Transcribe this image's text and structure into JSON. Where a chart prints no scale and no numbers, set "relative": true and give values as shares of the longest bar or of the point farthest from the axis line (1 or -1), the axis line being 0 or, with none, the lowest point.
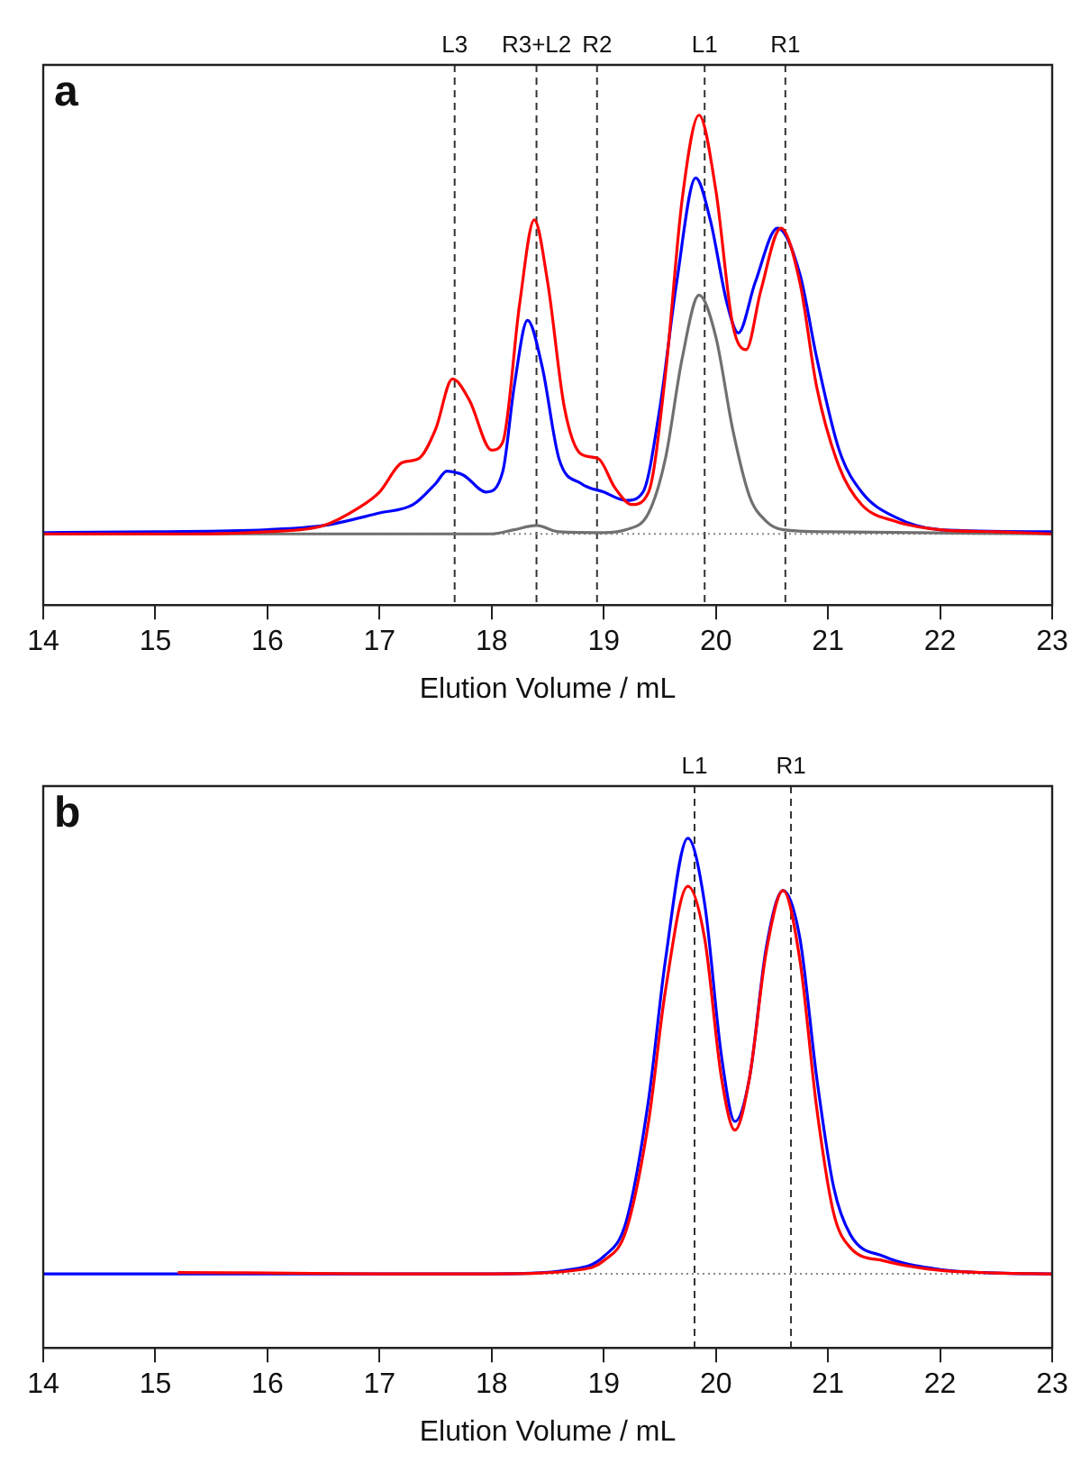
{
  "chart_data": [
    {
      "type": "line",
      "title": "a",
      "xlabel": "Elution Volume / mL",
      "relative": true,
      "xlim": [
        14,
        23
      ],
      "xticks": [
        14,
        15,
        16,
        17,
        18,
        19,
        20,
        21,
        22,
        23
      ],
      "grid": false,
      "legend": false,
      "marker": "none",
      "line_style": "solid",
      "ref_lines": [
        {
          "axis": "x",
          "value": 17.67,
          "label": "L3",
          "line_style": "dashed",
          "color": "#333333"
        },
        {
          "axis": "x",
          "value": 18.4,
          "label": "R3+L2",
          "line_style": "dashed",
          "color": "#333333"
        },
        {
          "axis": "x",
          "value": 18.94,
          "label": "R2",
          "line_style": "dashed",
          "color": "#333333"
        },
        {
          "axis": "x",
          "value": 19.9,
          "label": "L1",
          "line_style": "dashed",
          "color": "#333333"
        },
        {
          "axis": "x",
          "value": 20.62,
          "label": "R1",
          "line_style": "dashed",
          "color": "#333333"
        },
        {
          "axis": "y",
          "value": 0,
          "line_style": "dotted",
          "color": "#888888"
        }
      ],
      "series": [
        {
          "color": "#ff0000",
          "x": [
            14,
            15.3,
            16,
            16.5,
            16.8,
            17,
            17.2,
            17.35,
            17.5,
            17.65,
            17.8,
            18,
            18.1,
            18.25,
            18.38,
            18.5,
            18.65,
            18.8,
            18.95,
            19.1,
            19.25,
            19.4,
            19.55,
            19.7,
            19.85,
            20,
            20.15,
            20.27,
            20.4,
            20.58,
            20.75,
            20.9,
            21.1,
            21.3,
            21.6,
            22,
            22.5,
            23
          ],
          "values": [
            0,
            0,
            0.005,
            0.02,
            0.06,
            0.1,
            0.17,
            0.18,
            0.25,
            0.37,
            0.32,
            0.2,
            0.22,
            0.55,
            0.75,
            0.6,
            0.3,
            0.19,
            0.18,
            0.11,
            0.07,
            0.1,
            0.38,
            0.8,
            1,
            0.82,
            0.5,
            0.44,
            0.58,
            0.73,
            0.6,
            0.35,
            0.16,
            0.07,
            0.03,
            0.01,
            0.005,
            0
          ]
        },
        {
          "color": "#0000ff",
          "x": [
            14,
            15,
            16,
            16.5,
            17,
            17.3,
            17.5,
            17.6,
            17.75,
            17.95,
            18.1,
            18.2,
            18.32,
            18.45,
            18.6,
            18.8,
            19,
            19.2,
            19.35,
            19.5,
            19.65,
            19.82,
            19.95,
            20.1,
            20.2,
            20.35,
            20.55,
            20.75,
            20.9,
            21.1,
            21.3,
            21.6,
            22,
            23
          ],
          "values": [
            0.003,
            0.005,
            0.01,
            0.02,
            0.05,
            0.07,
            0.12,
            0.15,
            0.14,
            0.1,
            0.15,
            0.35,
            0.51,
            0.4,
            0.18,
            0.12,
            0.1,
            0.08,
            0.1,
            0.3,
            0.6,
            0.85,
            0.75,
            0.55,
            0.48,
            0.6,
            0.73,
            0.62,
            0.42,
            0.2,
            0.1,
            0.04,
            0.01,
            0.005
          ]
        },
        {
          "color": "#707070",
          "x": [
            14,
            18,
            18.2,
            18.4,
            18.6,
            19,
            19.2,
            19.4,
            19.55,
            19.7,
            19.85,
            20,
            20.15,
            20.3,
            20.45,
            20.6,
            21,
            23
          ],
          "values": [
            0,
            0,
            0.01,
            0.02,
            0.005,
            0.003,
            0.01,
            0.05,
            0.18,
            0.42,
            0.57,
            0.47,
            0.25,
            0.09,
            0.03,
            0.01,
            0.005,
            0
          ]
        }
      ]
    },
    {
      "type": "line",
      "title": "b",
      "xlabel": "Elution Volume / mL",
      "relative": true,
      "xlim": [
        14,
        23
      ],
      "xticks": [
        14,
        15,
        16,
        17,
        18,
        19,
        20,
        21,
        22,
        23
      ],
      "grid": false,
      "legend": false,
      "marker": "none",
      "line_style": "solid",
      "ref_lines": [
        {
          "axis": "x",
          "value": 19.81,
          "label": "L1",
          "line_style": "dashed",
          "color": "#333333"
        },
        {
          "axis": "x",
          "value": 20.67,
          "label": "R1",
          "line_style": "dashed",
          "color": "#333333"
        },
        {
          "axis": "y",
          "value": 0,
          "line_style": "dotted",
          "color": "#888888"
        }
      ],
      "series": [
        {
          "color": "#ff0000",
          "x": [
            15.2,
            16,
            17,
            18,
            18.8,
            19,
            19.2,
            19.4,
            19.55,
            19.75,
            19.9,
            20.05,
            20.17,
            20.3,
            20.45,
            20.6,
            20.75,
            20.9,
            21.05,
            21.2,
            21.5,
            22,
            22.5,
            23
          ],
          "values": [
            0.003,
            0.002,
            0,
            0,
            0.01,
            0.03,
            0.1,
            0.35,
            0.65,
            0.89,
            0.77,
            0.45,
            0.33,
            0.45,
            0.74,
            0.88,
            0.72,
            0.38,
            0.14,
            0.06,
            0.03,
            0.008,
            0.002,
            0
          ]
        },
        {
          "color": "#0000ff",
          "x": [
            14,
            15,
            16,
            17,
            18,
            18.7,
            19,
            19.2,
            19.4,
            19.55,
            19.75,
            19.9,
            20.05,
            20.17,
            20.3,
            20.45,
            20.6,
            20.75,
            20.9,
            21.05,
            21.2,
            21.5,
            22,
            22.5,
            23
          ],
          "values": [
            0,
            0,
            0,
            0,
            0,
            0.01,
            0.04,
            0.12,
            0.4,
            0.72,
            1,
            0.85,
            0.5,
            0.35,
            0.45,
            0.75,
            0.88,
            0.77,
            0.45,
            0.2,
            0.09,
            0.04,
            0.01,
            0.002,
            0
          ]
        }
      ]
    }
  ]
}
